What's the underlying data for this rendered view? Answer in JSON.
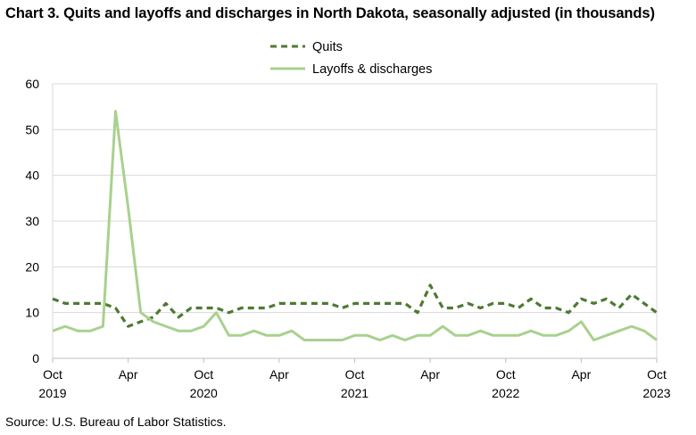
{
  "chart_data": {
    "type": "line",
    "title": "Chart 3. Quits and layoffs and discharges in North Dakota, seasonally adjusted (in thousands)",
    "source": "Source: U.S. Bureau of Labor Statistics.",
    "ylim": [
      0,
      60
    ],
    "yticks": [
      "0",
      "10",
      "20",
      "30",
      "40",
      "50",
      "60"
    ],
    "x_tick_labels": [
      {
        "month": "Oct",
        "year": "2019"
      },
      {
        "month": "Apr",
        "year": ""
      },
      {
        "month": "Oct",
        "year": "2020"
      },
      {
        "month": "Apr",
        "year": ""
      },
      {
        "month": "Oct",
        "year": "2021"
      },
      {
        "month": "Apr",
        "year": ""
      },
      {
        "month": "Oct",
        "year": "2022"
      },
      {
        "month": "Apr",
        "year": ""
      },
      {
        "month": "Oct",
        "year": "2023"
      }
    ],
    "x_start": "2019-10",
    "x_end": "2023-10",
    "grid": "horizontal",
    "legend": "top-center",
    "series": [
      {
        "name": "Quits",
        "color": "#4e7a33",
        "style": "dashed",
        "values": [
          13,
          12,
          12,
          12,
          12,
          11,
          7,
          8,
          9,
          12,
          9,
          11,
          11,
          11,
          10,
          11,
          11,
          11,
          12,
          12,
          12,
          12,
          12,
          11,
          12,
          12,
          12,
          12,
          12,
          10,
          16,
          11,
          11,
          12,
          11,
          12,
          12,
          11,
          13,
          11,
          11,
          10,
          13,
          12,
          13,
          11,
          14,
          12,
          10
        ]
      },
      {
        "name": "Layoffs & discharges",
        "color": "#a9d18e",
        "style": "solid",
        "values": [
          6,
          7,
          6,
          6,
          7,
          54,
          33,
          10,
          8,
          7,
          6,
          6,
          7,
          10,
          5,
          5,
          6,
          5,
          5,
          6,
          4,
          4,
          4,
          4,
          5,
          5,
          4,
          5,
          4,
          5,
          5,
          7,
          5,
          5,
          6,
          5,
          5,
          5,
          6,
          5,
          5,
          6,
          8,
          4,
          5,
          6,
          7,
          6,
          4
        ]
      }
    ]
  }
}
